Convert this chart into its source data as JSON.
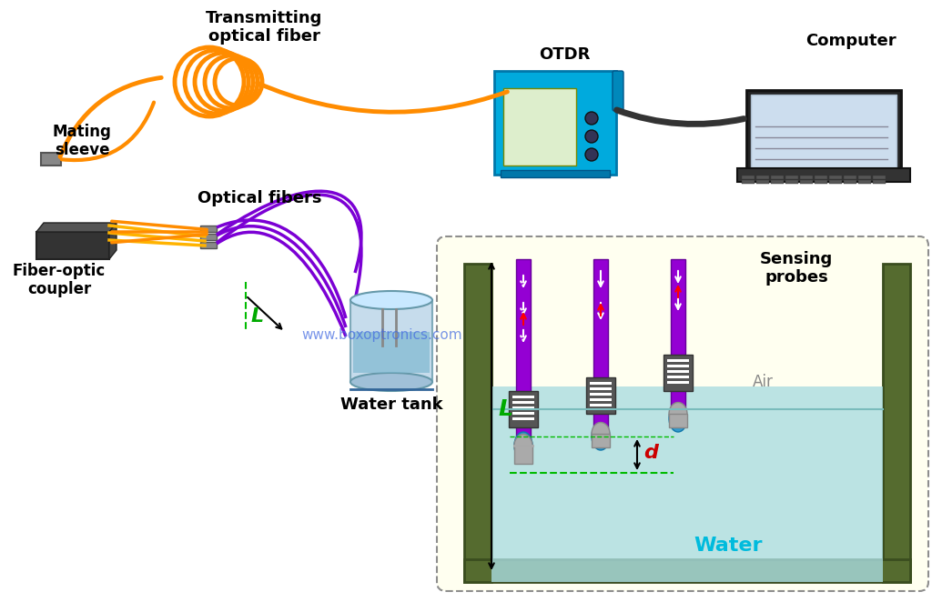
{
  "bg_color": "#ffffff",
  "title": "",
  "watermark": "www.boxoptronics.com",
  "watermark_color": "#4169e1",
  "labels": {
    "transmitting_optical_fiber": "Transmitting\noptical fiber",
    "otdr": "OTDR",
    "computer": "Computer",
    "mating_sleeve": "Mating\nsleeve",
    "optical_fibers": "Optical fibers",
    "fiber_optic_coupler": "Fiber-optic\ncoupler",
    "water_tank": "Water tank",
    "sensing_probes": "Sensing\nprobes",
    "air": "Air",
    "water": "Water",
    "L_label": "L",
    "d_label": "d"
  },
  "colors": {
    "orange_fiber": "#FF8C00",
    "purple_fiber": "#800080",
    "blue_device": "#00BFFF",
    "dark_blue_device": "#1E90FF",
    "gray_connector": "#808080",
    "dark_gray": "#404040",
    "black": "#000000",
    "green_L": "#00AA00",
    "water_color": "#B0E8E8",
    "tank_wall": "#556B2F",
    "probe_bg": "#F5F5DC",
    "probe_purple": "#9400D3",
    "probe_blue": "#4488CC",
    "probe_gray": "#AAAAAA",
    "probe_dark": "#555555",
    "red_arrow": "#FF0000",
    "white_arrow": "#FFFFFF",
    "dashed_green": "#00BB00"
  }
}
